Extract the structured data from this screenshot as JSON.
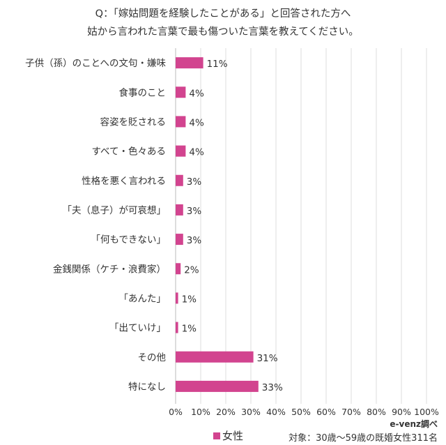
{
  "chart_data": {
    "type": "bar",
    "orientation": "horizontal",
    "title_lines": [
      "Q：「嫁姑問題を経験したことがある」と回答された方へ",
      "姑から言われた言葉で最も傷ついた言葉を教えてください。"
    ],
    "categories": [
      "子供（孫）のことへの文句・嫌味",
      "食事のこと",
      "容姿を貶される",
      "すべて・色々ある",
      "性格を悪く言われる",
      "「夫（息子）が可哀想」",
      "「何もできない」",
      "金銭関係（ケチ・浪費家）",
      "「あんた」",
      "「出ていけ」",
      "その他",
      "特になし"
    ],
    "series": [
      {
        "name": "女性",
        "values": [
          11,
          4,
          4,
          4,
          3,
          3,
          3,
          2,
          1,
          1,
          31,
          33
        ],
        "color": "#d2448f"
      }
    ],
    "data_labels": [
      "11%",
      "4%",
      "4%",
      "4%",
      "3%",
      "3%",
      "3%",
      "2%",
      "1%",
      "1%",
      "31%",
      "33%"
    ],
    "xlim": [
      0,
      100
    ],
    "xticks": [
      "0%",
      "10%",
      "20%",
      "30%",
      "40%",
      "50%",
      "60%",
      "70%",
      "80%",
      "90%",
      "100%"
    ],
    "grid": true,
    "legend": "bottom-left"
  },
  "source": "e-venz調べ",
  "sample": "対象：30歳〜59歳の既婚女性311名"
}
